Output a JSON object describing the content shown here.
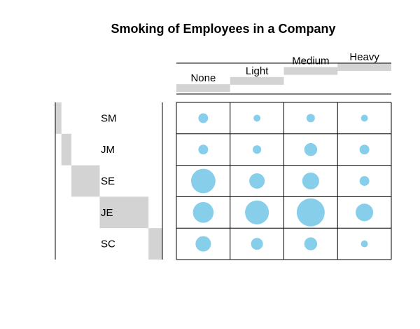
{
  "chart_data": {
    "type": "balloon",
    "title": "Smoking of Employees in a Company",
    "columns": [
      "None",
      "Light",
      "Medium",
      "Heavy"
    ],
    "rows": [
      "SM",
      "JM",
      "SE",
      "JE",
      "SC"
    ],
    "values": [
      [
        4,
        2,
        3,
        2
      ],
      [
        4,
        3,
        7,
        4
      ],
      [
        25,
        10,
        12,
        4
      ],
      [
        18,
        24,
        33,
        13
      ],
      [
        10,
        6,
        7,
        2
      ]
    ],
    "column_totals": [
      61,
      45,
      62,
      25
    ],
    "row_totals": [
      11,
      18,
      51,
      88,
      25
    ],
    "colors": {
      "balloon": "#87ceeb",
      "margin_bar": "#d3d3d3",
      "grid": "#000000"
    }
  }
}
